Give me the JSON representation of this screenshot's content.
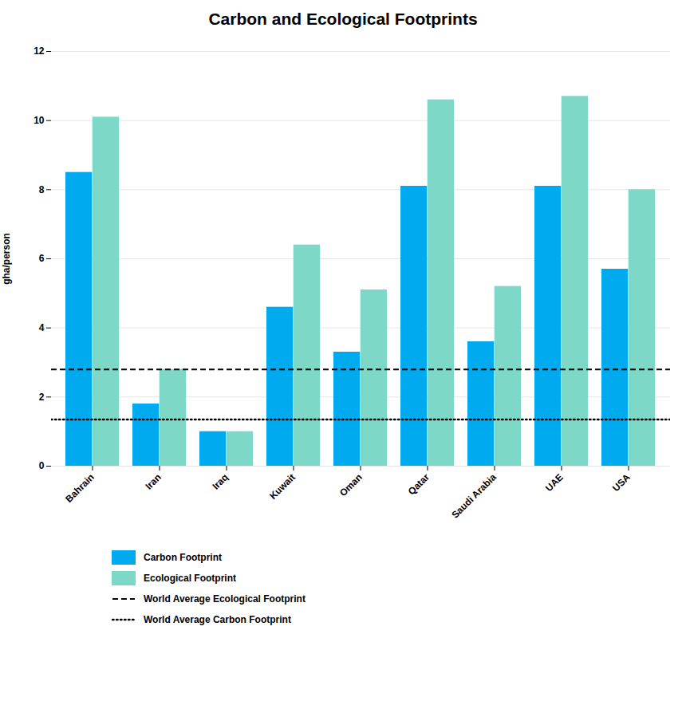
{
  "chart_data": {
    "type": "bar",
    "title": "Carbon and Ecological Footprints",
    "categories": [
      "Bahrain",
      "Iran",
      "Iraq",
      "Kuwait",
      "Oman",
      "Qatar",
      "Saudi Arabia",
      "UAE",
      "USA"
    ],
    "series": [
      {
        "name": "Carbon Footprint",
        "color": "#00AAEE",
        "values": [
          8.5,
          1.8,
          1.0,
          4.6,
          3.3,
          8.1,
          3.6,
          8.1,
          5.7
        ]
      },
      {
        "name": "Ecological Footprint",
        "color": "#7DD8C8",
        "values": [
          10.1,
          2.8,
          1.0,
          6.4,
          5.1,
          10.6,
          5.2,
          10.7,
          8.0
        ]
      },
      {
        "name": "World Average Ecological Footprint",
        "type": "hline",
        "value": 2.8,
        "color": "#000000",
        "line_style": "dashed"
      },
      {
        "name": "World Average Carbon Footprint",
        "type": "hline",
        "value": 1.35,
        "color": "#000000",
        "line_style": "dotted"
      }
    ],
    "ylabel": "gha/person",
    "ylim": [
      0,
      12
    ],
    "yticks": [
      0,
      2,
      4,
      6,
      8,
      10,
      12
    ],
    "grid": true,
    "legend": "bottom"
  }
}
